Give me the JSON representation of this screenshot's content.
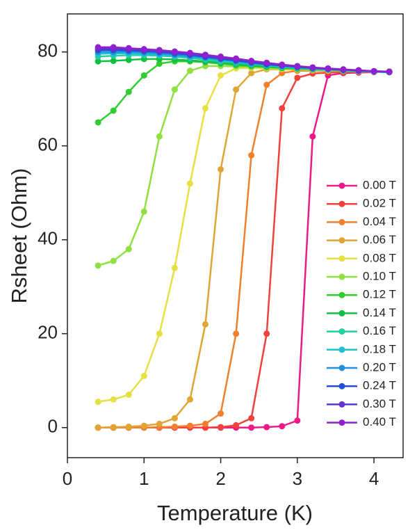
{
  "chart_data": {
    "type": "line",
    "x_label": "Temperature (K)",
    "y_label": "Rsheet (Ohm)",
    "x": [
      0.4,
      0.6,
      0.8,
      1.0,
      1.2,
      1.4,
      1.6,
      1.8,
      2.0,
      2.2,
      2.4,
      2.6,
      2.8,
      3.0,
      3.2,
      3.4,
      3.6,
      3.8,
      4.0,
      4.2
    ],
    "xlim": [
      0,
      4.38
    ],
    "xticks": [
      0,
      1,
      2,
      3,
      4
    ],
    "ylim": [
      -6.4,
      88.1
    ],
    "yticks": [
      0,
      20,
      40,
      60,
      80
    ],
    "legend": "right",
    "series": [
      {
        "name": "0.00 T",
        "color": "#ec1a86",
        "values": [
          0,
          0,
          0,
          0,
          0,
          0,
          0,
          0,
          0,
          0,
          0,
          0.1,
          0.3,
          1.5,
          62,
          75,
          75.5,
          75.6,
          75.7,
          75.8
        ]
      },
      {
        "name": "0.02 T",
        "color": "#f2403a",
        "values": [
          0,
          0,
          0,
          0,
          0,
          0,
          0,
          0,
          0.1,
          0.5,
          2,
          20,
          68,
          74.5,
          75.4,
          75.6,
          75.7,
          75.8,
          75.8,
          75.7
        ]
      },
      {
        "name": "0.04 T",
        "color": "#f0802c",
        "values": [
          0,
          0,
          0,
          0,
          0.1,
          0.2,
          0.4,
          0.8,
          3,
          20,
          58,
          73,
          75.5,
          76,
          76,
          76,
          75.9,
          75.8,
          75.8,
          75.7
        ]
      },
      {
        "name": "0.06 T",
        "color": "#e0a535",
        "values": [
          0,
          0.1,
          0.2,
          0.4,
          0.8,
          2,
          6,
          22,
          55,
          72,
          75.5,
          76.3,
          76.3,
          76.2,
          76.1,
          76,
          75.9,
          75.8,
          75.8,
          75.7
        ]
      },
      {
        "name": "0.08 T",
        "color": "#e6e040",
        "values": [
          5.5,
          6,
          7,
          11,
          20,
          34,
          52,
          68,
          75,
          76.5,
          76.6,
          76.5,
          76.4,
          76.3,
          76.2,
          76.1,
          76,
          75.9,
          75.8,
          75.7
        ]
      },
      {
        "name": "0.10 T",
        "color": "#90e040",
        "values": [
          34.5,
          35.5,
          38,
          46,
          62,
          72,
          76,
          77,
          77,
          76.9,
          76.8,
          76.6,
          76.5,
          76.4,
          76.3,
          76.2,
          76,
          75.9,
          75.8,
          75.7
        ]
      },
      {
        "name": "0.12 T",
        "color": "#30cc30",
        "values": [
          65,
          67.5,
          71.5,
          75,
          77.5,
          78,
          78,
          77.8,
          77.5,
          77.2,
          77,
          76.8,
          76.6,
          76.4,
          76.3,
          76.2,
          76,
          75.9,
          75.8,
          75.7
        ]
      },
      {
        "name": "0.14 T",
        "color": "#10c040",
        "values": [
          78,
          78.1,
          78.3,
          78.5,
          78.5,
          78.4,
          78.2,
          78,
          77.7,
          77.4,
          77.1,
          76.9,
          76.7,
          76.5,
          76.3,
          76.2,
          76,
          75.9,
          75.8,
          75.7
        ]
      },
      {
        "name": "0.16 T",
        "color": "#20d0a0",
        "values": [
          79,
          79.2,
          79.3,
          79.3,
          79.2,
          79,
          78.7,
          78.4,
          78,
          77.7,
          77.4,
          77.1,
          76.8,
          76.6,
          76.4,
          76.2,
          76.1,
          75.9,
          75.8,
          75.7
        ]
      },
      {
        "name": "0.18 T",
        "color": "#20c0d0",
        "values": [
          79.6,
          79.7,
          79.7,
          79.6,
          79.4,
          79.2,
          78.9,
          78.6,
          78.2,
          77.8,
          77.5,
          77.2,
          76.9,
          76.7,
          76.5,
          76.3,
          76.1,
          76,
          75.8,
          75.7
        ]
      },
      {
        "name": "0.20 T",
        "color": "#2090e0",
        "values": [
          80,
          80,
          80,
          79.9,
          79.7,
          79.4,
          79.1,
          78.8,
          78.4,
          78,
          77.6,
          77.3,
          77,
          76.8,
          76.5,
          76.3,
          76.2,
          76,
          75.9,
          75.7
        ]
      },
      {
        "name": "0.24 T",
        "color": "#2050d0",
        "values": [
          80.4,
          80.4,
          80.3,
          80.2,
          80,
          79.7,
          79.4,
          79,
          78.6,
          78.2,
          77.8,
          77.4,
          77.1,
          76.8,
          76.6,
          76.4,
          76.2,
          76,
          75.9,
          75.8
        ]
      },
      {
        "name": "0.30 T",
        "color": "#6034d0",
        "values": [
          80.7,
          80.7,
          80.6,
          80.4,
          80.2,
          79.9,
          79.6,
          79.2,
          78.8,
          78.4,
          78,
          77.6,
          77.2,
          76.9,
          76.7,
          76.4,
          76.2,
          76.1,
          75.9,
          75.8
        ]
      },
      {
        "name": "0.40 T",
        "color": "#9020d0",
        "values": [
          81,
          81,
          80.8,
          80.6,
          80.4,
          80.1,
          79.8,
          79.4,
          79,
          78.6,
          78.1,
          77.7,
          77.3,
          77,
          76.7,
          76.5,
          76.3,
          76.1,
          75.9,
          75.8
        ]
      }
    ]
  }
}
